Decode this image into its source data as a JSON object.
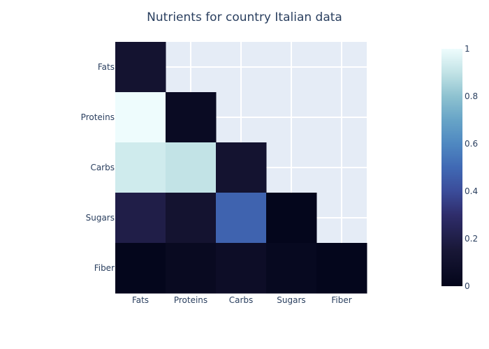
{
  "chart_data": {
    "type": "heatmap",
    "title": "Nutrients for country Italian data",
    "x_categories": [
      "Fats",
      "Proteins",
      "Carbs",
      "Sugars",
      "Fiber"
    ],
    "y_categories": [
      "Fats",
      "Proteins",
      "Carbs",
      "Sugars",
      "Fiber"
    ],
    "matrix": [
      [
        0.12,
        null,
        null,
        null,
        null
      ],
      [
        1.0,
        0.05,
        null,
        null,
        null
      ],
      [
        0.93,
        0.9,
        0.12,
        null,
        null
      ],
      [
        0.2,
        0.12,
        0.48,
        0.01,
        null
      ],
      [
        0.01,
        0.04,
        0.07,
        0.03,
        0.01
      ]
    ],
    "colorbar": {
      "min": 0,
      "max": 1,
      "ticks": [
        "0",
        "0.2",
        "0.4",
        "0.6",
        "0.8",
        "1"
      ]
    },
    "colorscale": [
      [
        0.0,
        "#03051a"
      ],
      [
        0.15,
        "#181736"
      ],
      [
        0.3,
        "#2f2d6b"
      ],
      [
        0.4,
        "#3b4c9a"
      ],
      [
        0.5,
        "#4069b4"
      ],
      [
        0.6,
        "#4f88c1"
      ],
      [
        0.7,
        "#67a4c7"
      ],
      [
        0.8,
        "#8ec2d0"
      ],
      [
        0.9,
        "#c2e3e6"
      ],
      [
        1.0,
        "#eefcfd"
      ]
    ],
    "plot_background": "#e5ecf6",
    "grid": true
  }
}
